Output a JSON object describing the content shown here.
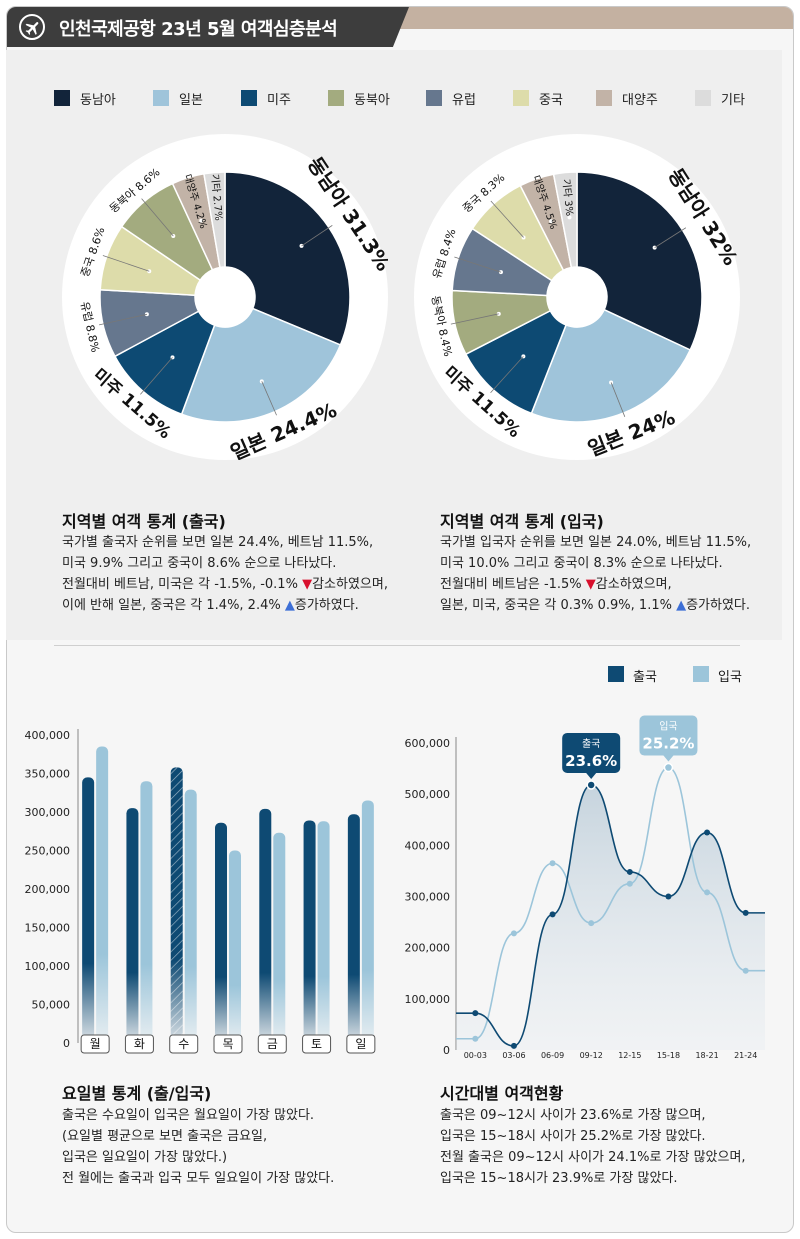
{
  "header": {
    "title": "인천국제공항 23년 5월 여객심층분석"
  },
  "colors": {
    "southeast_asia": "#12243a",
    "japan": "#9fc4da",
    "americas": "#0d4a73",
    "northeast_asia": "#a3ab7f",
    "europe": "#66778e",
    "china": "#dddcaa",
    "oceania": "#c2b3a7",
    "other": "#dcdcdc",
    "departure": "#0e4a73",
    "arrival": "#9cc5da"
  },
  "legend": [
    {
      "label": "동남아",
      "color": "#12243a"
    },
    {
      "label": "일본",
      "color": "#9fc4da"
    },
    {
      "label": "미주",
      "color": "#0d4a73"
    },
    {
      "label": "동북아",
      "color": "#a3ab7f"
    },
    {
      "label": "유럽",
      "color": "#66778e"
    },
    {
      "label": "중국",
      "color": "#dddcaa"
    },
    {
      "label": "대양주",
      "color": "#c2b3a7"
    },
    {
      "label": "기타",
      "color": "#dcdcdc"
    }
  ],
  "chart_data": [
    {
      "type": "pie",
      "id": "departure-regions",
      "slices": [
        {
          "label": "동남아 31.3%",
          "value": 31.3,
          "color": "#12243a"
        },
        {
          "label": "일본 24.4%",
          "value": 24.4,
          "color": "#9fc4da"
        },
        {
          "label": "미주 11.5%",
          "value": 11.5,
          "color": "#0d4a73"
        },
        {
          "label": "유럽 8.8%",
          "value": 8.8,
          "color": "#66778e"
        },
        {
          "label": "중국 8.6%",
          "value": 8.6,
          "color": "#dddcaa"
        },
        {
          "label": "동북아 8.6%",
          "value": 8.6,
          "color": "#a3ab7f"
        },
        {
          "label": "대양주 4.2%",
          "value": 4.2,
          "color": "#c2b3a7"
        },
        {
          "label": "기타 2.7%",
          "value": 2.7,
          "color": "#dcdcdc"
        }
      ]
    },
    {
      "type": "pie",
      "id": "arrival-regions",
      "slices": [
        {
          "label": "동남아 32%",
          "value": 32,
          "color": "#12243a"
        },
        {
          "label": "일본 24%",
          "value": 24,
          "color": "#9fc4da"
        },
        {
          "label": "미주 11.5%",
          "value": 11.5,
          "color": "#0d4a73"
        },
        {
          "label": "동북아 8.4%",
          "value": 8.4,
          "color": "#a3ab7f"
        },
        {
          "label": "유럽 8.4%",
          "value": 8.4,
          "color": "#66778e"
        },
        {
          "label": "중국 8.3%",
          "value": 8.3,
          "color": "#dddcaa"
        },
        {
          "label": "대양주 4.5%",
          "value": 4.5,
          "color": "#c2b3a7"
        },
        {
          "label": "기타 3%",
          "value": 3,
          "color": "#dcdcdc"
        }
      ]
    },
    {
      "type": "bar",
      "id": "weekday",
      "categories": [
        "월",
        "화",
        "수",
        "목",
        "금",
        "토",
        "일"
      ],
      "series": [
        {
          "name": "출국",
          "values": [
            345000,
            305000,
            358000,
            286000,
            304000,
            289000,
            297000
          ]
        },
        {
          "name": "입국",
          "values": [
            385000,
            340000,
            329000,
            250000,
            273000,
            288000,
            315000
          ]
        }
      ],
      "highlight_category": "수",
      "ylim": [
        0,
        400000
      ],
      "yticks": [
        "0",
        "50,000",
        "100,000",
        "150,000",
        "200,000",
        "250,000",
        "300,000",
        "350,000",
        "400,000"
      ]
    },
    {
      "type": "line",
      "id": "hourly",
      "categories": [
        "00-03",
        "03-06",
        "06-09",
        "09-12",
        "12-15",
        "15-18",
        "18-21",
        "21-24"
      ],
      "series": [
        {
          "name": "출국",
          "values": [
            72000,
            8000,
            265000,
            518000,
            348000,
            300000,
            425000,
            268000
          ]
        },
        {
          "name": "입국",
          "values": [
            22000,
            228000,
            365000,
            248000,
            325000,
            552000,
            308000,
            155000
          ]
        }
      ],
      "ylim": [
        0,
        600000
      ],
      "yticks": [
        "0",
        "100,000",
        "200,000",
        "300,000",
        "400,000",
        "500,000",
        "600,000"
      ],
      "callouts": [
        {
          "series": "출국",
          "category": "09-12",
          "title": "출국",
          "value": "23.6%"
        },
        {
          "series": "입국",
          "category": "15-18",
          "title": "입국",
          "value": "25.2%"
        }
      ]
    }
  ],
  "sections": {
    "departure": {
      "title": "지역별 여객 통계 (출국)",
      "lines": [
        {
          "text": "국가별 출국자 순위를 보면 일본 24.4%, 베트남 11.5%,"
        },
        {
          "text": "미국 9.9% 그리고 중국이 8.6% 순으로 나타났다."
        },
        {
          "text": "전월대비 베트남, 미국은 각 -1.5%, -0.1% ",
          "marker": "▼",
          "marker_class": "tri-down",
          "after": "감소하였으며,"
        },
        {
          "text": "이에 반해 일본, 중국은 각 1.4%, 2.4% ",
          "marker": "▲",
          "marker_class": "tri-up",
          "after": "증가하였다."
        }
      ]
    },
    "arrival": {
      "title": "지역별 여객 통계 (입국)",
      "lines": [
        {
          "text": "국가별 입국자 순위를 보면 일본 24.0%, 베트남 11.5%,"
        },
        {
          "text": "미국 10.0% 그리고 중국이 8.3% 순으로 나타났다."
        },
        {
          "text": "전월대비 베트남은 -1.5% ",
          "marker": "▼",
          "marker_class": "tri-down",
          "after": "감소하였으며,"
        },
        {
          "text": "일본, 미국, 중국은 각 0.3% 0.9%, 1.1% ",
          "marker": "▲",
          "marker_class": "tri-up",
          "after": "증가하였다."
        }
      ]
    },
    "weekday": {
      "title": "요일별 통계 (출/입국)",
      "lines": [
        {
          "text": "출국은 수요일이 입국은 월요일이 가장 많았다."
        },
        {
          "text": "(요일별 평균으로 보면 출국은 금요일,"
        },
        {
          "text": "입국은 일요일이 가장 많았다.)"
        },
        {
          "text": "전 월에는 출국과 입국 모두 일요일이 가장 많았다."
        }
      ]
    },
    "hourly": {
      "title": "시간대별 여객현황",
      "lines": [
        {
          "text": "출국은 09~12시 사이가 23.6%로 가장 많으며,"
        },
        {
          "text": "입국은 15~18시 사이가 25.2%로 가장 많았다."
        },
        {
          "text": "전월 출국은 09~12시 사이가 24.1%로 가장 많았으며,"
        },
        {
          "text": "입국은 15~18시가 23.9%로 가장 많았다."
        }
      ]
    }
  },
  "series_legend": [
    {
      "label": "출국",
      "color": "#0e4a73"
    },
    {
      "label": "입국",
      "color": "#9cc5da"
    }
  ]
}
